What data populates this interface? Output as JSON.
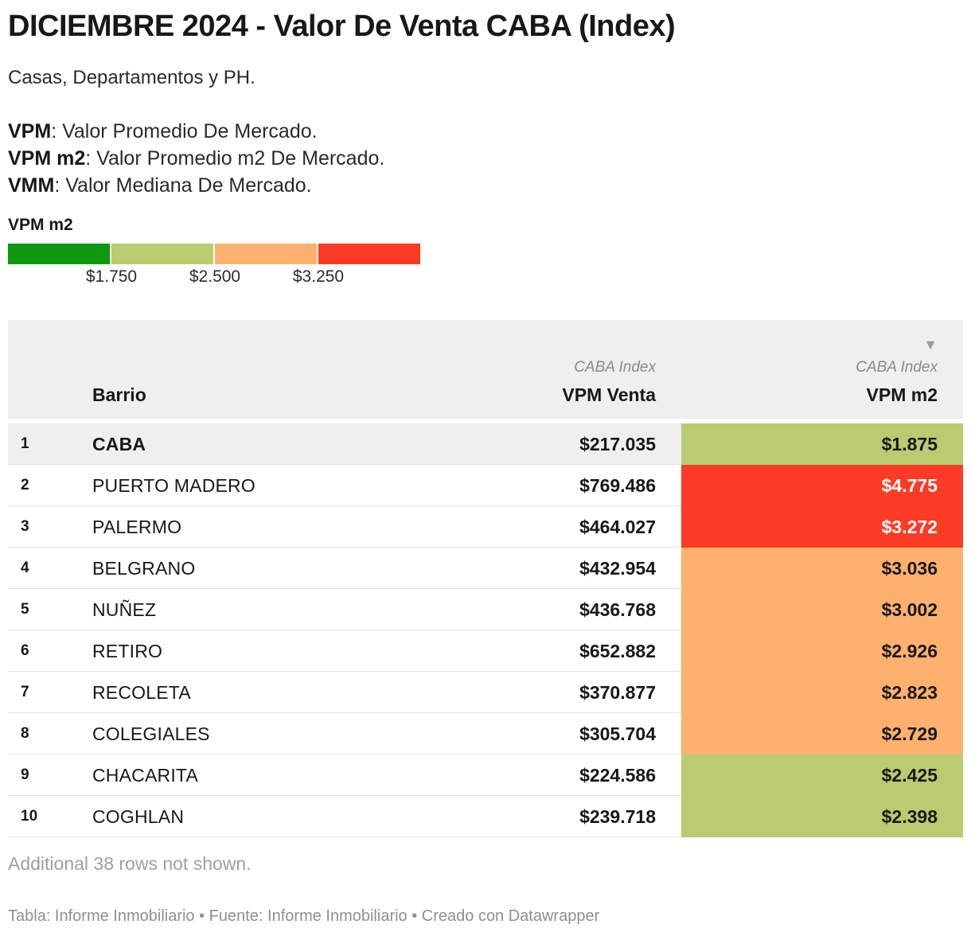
{
  "title": "DICIEMBRE 2024 - Valor De Venta CABA (Index)",
  "subtitle": "Casas, Departamentos y PH.",
  "definitions": [
    {
      "term": "VPM",
      "desc": ": Valor Promedio De Mercado."
    },
    {
      "term": "VPM m2",
      "desc": ": Valor Promedio m2 De Mercado."
    },
    {
      "term": "VMM",
      "desc": ": Valor Mediana De Mercado."
    }
  ],
  "legend": {
    "title": "VPM m2",
    "colors": [
      "#0e9a10",
      "#b9cc6f",
      "#feb06e",
      "#fc3b24"
    ],
    "ticks": [
      "$1.750",
      "$2.500",
      "$3.250"
    ]
  },
  "table": {
    "sort_icon": "sort-descending-icon",
    "columns": {
      "barrio": "Barrio",
      "venta_sup": "CABA Index",
      "venta": "VPM Venta",
      "m2_sup": "CABA Index",
      "m2": "VPM m2"
    },
    "rows": [
      {
        "rank": "1",
        "barrio": "CABA",
        "venta": "$217.035",
        "m2": "$1.875",
        "color": "#b9cc6f",
        "text_color": "#181818"
      },
      {
        "rank": "2",
        "barrio": "PUERTO MADERO",
        "venta": "$769.486",
        "m2": "$4.775",
        "color": "#fc3b24",
        "text_color": "#ffffff"
      },
      {
        "rank": "3",
        "barrio": "PALERMO",
        "venta": "$464.027",
        "m2": "$3.272",
        "color": "#fc3b24",
        "text_color": "#ffffff"
      },
      {
        "rank": "4",
        "barrio": "BELGRANO",
        "venta": "$432.954",
        "m2": "$3.036",
        "color": "#feb06e",
        "text_color": "#181818"
      },
      {
        "rank": "5",
        "barrio": "NUÑEZ",
        "venta": "$436.768",
        "m2": "$3.002",
        "color": "#feb06e",
        "text_color": "#181818"
      },
      {
        "rank": "6",
        "barrio": "RETIRO",
        "venta": "$652.882",
        "m2": "$2.926",
        "color": "#feb06e",
        "text_color": "#181818"
      },
      {
        "rank": "7",
        "barrio": "RECOLETA",
        "venta": "$370.877",
        "m2": "$2.823",
        "color": "#feb06e",
        "text_color": "#181818"
      },
      {
        "rank": "8",
        "barrio": "COLEGIALES",
        "venta": "$305.704",
        "m2": "$2.729",
        "color": "#feb06e",
        "text_color": "#181818"
      },
      {
        "rank": "9",
        "barrio": "CHACARITA",
        "venta": "$224.586",
        "m2": "$2.425",
        "color": "#b9cc6f",
        "text_color": "#181818"
      },
      {
        "rank": "10",
        "barrio": "COGHLAN",
        "venta": "$239.718",
        "m2": "$2.398",
        "color": "#b9cc6f",
        "text_color": "#181818"
      }
    ]
  },
  "note": "Additional 38 rows not shown.",
  "footer": "Tabla: Informe Inmobiliario • Fuente: Informe Inmobiliario • Creado con Datawrapper"
}
